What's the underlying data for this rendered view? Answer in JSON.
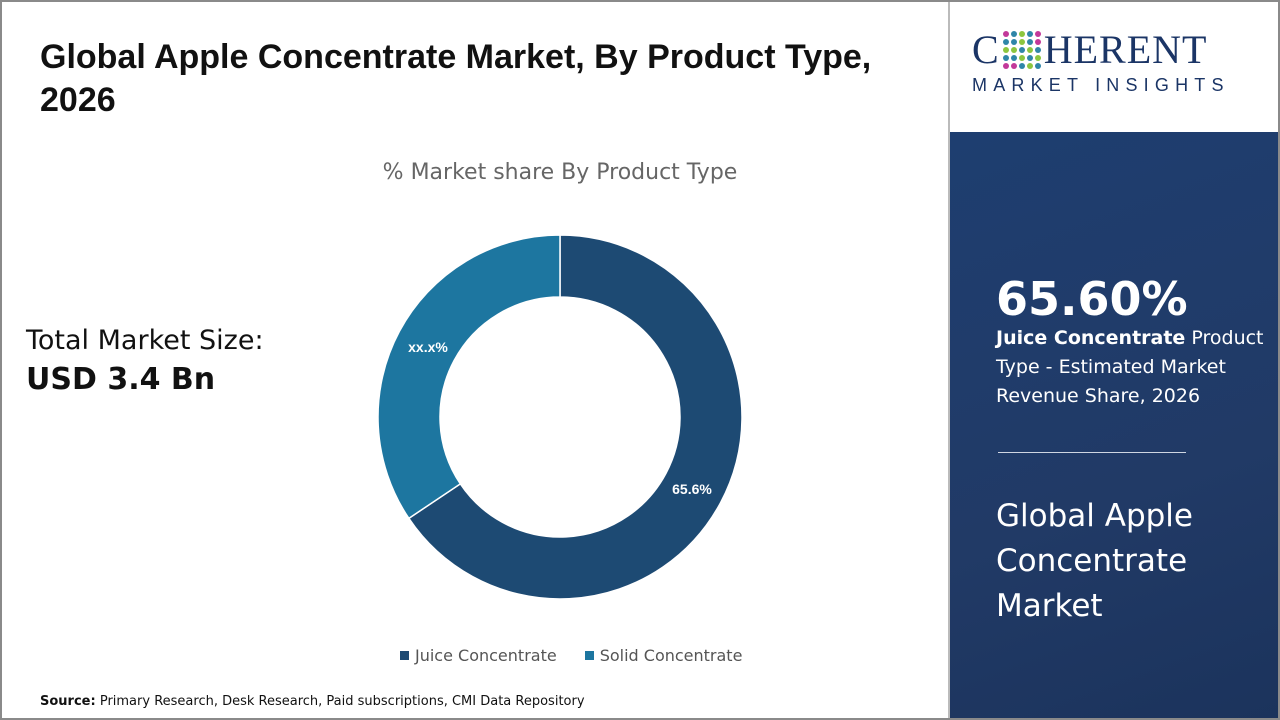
{
  "header": {
    "title": "Global Apple Concentrate Market, By Product Type, 2026"
  },
  "total": {
    "label": "Total Market Size:",
    "value": "USD 3.4 Bn"
  },
  "source": {
    "label": "Source:",
    "text": "Primary Research, Desk Research, Paid subscriptions, CMI Data Repository"
  },
  "chart_data": {
    "type": "pie",
    "variant": "donut",
    "title": "% Market share By Product Type",
    "categories": [
      "Juice Concentrate",
      "Solid Concentrate"
    ],
    "values": [
      65.6,
      34.4
    ],
    "data_labels": [
      "65.6%",
      "xx.x%"
    ],
    "colors": [
      "#1d4a73",
      "#1d76a0"
    ],
    "legend": "bottom"
  },
  "brand": {
    "logo_main": "COHERENT",
    "logo_sub": "MARKET INSIGHTS"
  },
  "highlight": {
    "percent": "65.60%",
    "segment": "Juice Concentrate",
    "desc": " Product Type - Estimated Market Revenue Share, 2026",
    "market": "Global Apple Concentrate Market"
  }
}
